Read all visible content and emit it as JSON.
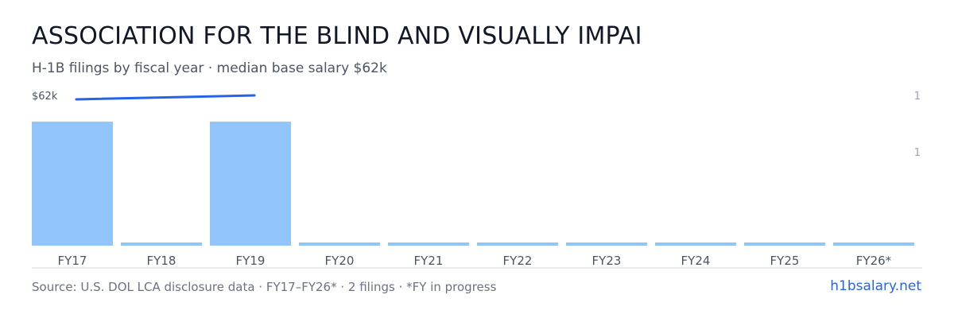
{
  "header": {
    "title": "ASSOCIATION FOR THE BLIND AND VISUALLY IMPAI",
    "subtitle": "H-1B filings by fiscal year · median base salary $62k"
  },
  "footer": {
    "source": "Source: U.S. DOL LCA disclosure data · FY17–FY26* · 2 filings · *FY in progress",
    "brand": "h1bsalary.net"
  },
  "colors": {
    "bar": "#93c5fd",
    "line": "#2563eb",
    "axis_text": "#4b5563",
    "baseline": "#d1d5db"
  },
  "chart_data": {
    "type": "bar",
    "categories": [
      "FY17",
      "FY18",
      "FY19",
      "FY20",
      "FY21",
      "FY22",
      "FY23",
      "FY24",
      "FY25",
      "FY26*"
    ],
    "series": [
      {
        "values": [
          1,
          0,
          1,
          0,
          0,
          0,
          0,
          0,
          0,
          0
        ]
      }
    ],
    "line_series": {
      "categories": [
        "FY17",
        "FY19"
      ],
      "values": [
        62,
        62
      ]
    },
    "salary_tick_label": "$62k",
    "count_tick_labels": [
      "1",
      "1"
    ],
    "ylim": [
      0,
      1
    ],
    "grid": false,
    "legend": "none"
  }
}
